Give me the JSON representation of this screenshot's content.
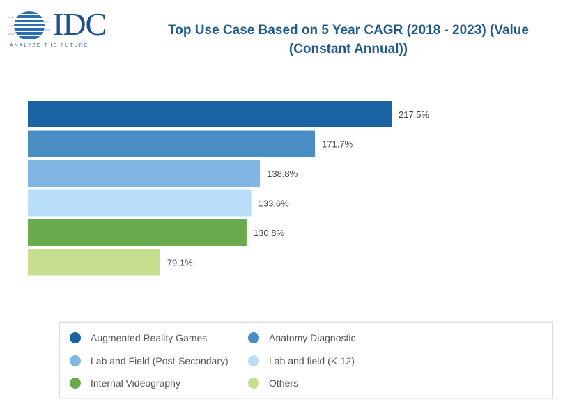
{
  "logo": {
    "text": "IDC",
    "tagline": "ANALYZE THE FUTURE"
  },
  "chart_data": {
    "type": "bar",
    "orientation": "horizontal",
    "title": "Top Use Case Based on 5 Year CAGR  (2018 - 2023) (Value (Constant Annual))",
    "title_lines": [
      "Top Use Case Based on 5 Year CAGR  (2018 - 2023) (Value",
      "(Constant Annual))"
    ],
    "categories": [
      "Augmented Reality Games",
      "Anatomy Diagnostic",
      "Lab and Field (Post-Secondary)",
      "Lab and field (K-12)",
      "Internal Videography",
      "Others"
    ],
    "values": [
      217.5,
      171.7,
      138.8,
      133.6,
      130.8,
      79.1
    ],
    "labels": [
      "217.5%",
      "171.7%",
      "138.8%",
      "133.6%",
      "130.8%",
      "79.1%"
    ],
    "colors": [
      "#1a64a4",
      "#4a8cc4",
      "#82b6e2",
      "#b8defa",
      "#6aaa4e",
      "#c6df8e"
    ],
    "unit": "%",
    "xlim": [
      0,
      217.5
    ],
    "grid": false,
    "legend_position": "bottom"
  }
}
